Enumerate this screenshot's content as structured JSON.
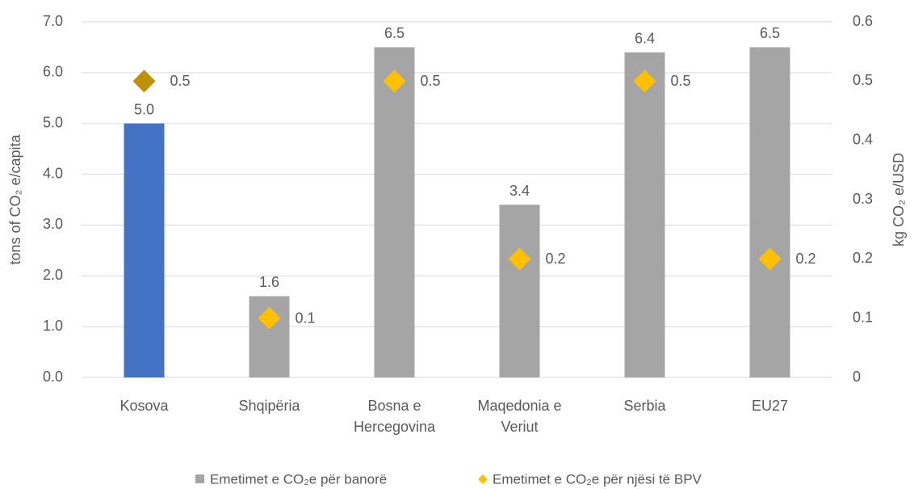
{
  "chart_data": {
    "type": "bar",
    "categories": [
      "Kosova",
      "Shqipëria",
      "Bosna e Hercegovina",
      "Maqedonia e Veriut",
      "Serbia",
      "EU27"
    ],
    "series": [
      {
        "name": "Emetimet e CO₂e për banorë",
        "type": "bar",
        "color": "#a5a5a5",
        "point_colors": [
          "#4472c4",
          "#a5a5a5",
          "#a5a5a5",
          "#a5a5a5",
          "#a5a5a5",
          "#a5a5a5"
        ],
        "values": [
          5,
          1.6,
          6.5,
          3.4,
          6.4,
          6.5
        ],
        "value_labels": [
          "5.0",
          "1.6",
          "6.5",
          "3.4",
          "6.4",
          "6.5"
        ]
      },
      {
        "name": "Emetimet e CO₂e për njësi të BPV",
        "type": "scatter",
        "axis": "y2",
        "color": "#ffc000",
        "point_colors": [
          "#bf9000",
          "#ffc000",
          "#ffc000",
          "#ffc000",
          "#ffc000",
          "#ffc000"
        ],
        "values": [
          0.5,
          0.1,
          0.5,
          0.2,
          0.5,
          0.2
        ]
      }
    ],
    "ylabel": "tons of CO₂ e/capita",
    "y2label": "kg CO₂ e/USD",
    "ylim": [
      0,
      7
    ],
    "yticks": [
      {
        "value": 0,
        "label": "0.0"
      },
      {
        "value": 1,
        "label": "1.0"
      },
      {
        "value": 2,
        "label": "2.0"
      },
      {
        "value": 3,
        "label": "3.0"
      },
      {
        "value": 4,
        "label": "4.0"
      },
      {
        "value": 5,
        "label": "5.0"
      },
      {
        "value": 6,
        "label": "6.0"
      },
      {
        "value": 7,
        "label": "7.0"
      }
    ],
    "y2lim": [
      0,
      0.6
    ],
    "y2ticks": [
      0,
      0.1,
      0.2,
      0.3,
      0.4,
      0.5,
      0.6
    ],
    "grid": true,
    "legend": "bottom"
  }
}
